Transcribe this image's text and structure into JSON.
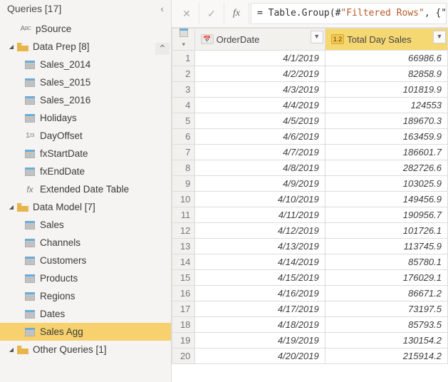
{
  "pane": {
    "title": "Queries [17]",
    "collapse_glyph": "‹"
  },
  "tree": {
    "root_item": {
      "label": "pSource",
      "icon": "abc"
    },
    "groups": [
      {
        "label": "Data Prep [8]",
        "expanded": true,
        "items": [
          {
            "label": "Sales_2014",
            "icon": "table"
          },
          {
            "label": "Sales_2015",
            "icon": "table"
          },
          {
            "label": "Sales_2016",
            "icon": "table"
          },
          {
            "label": "Holidays",
            "icon": "table"
          },
          {
            "label": "DayOffset",
            "icon": "num"
          },
          {
            "label": "fxStartDate",
            "icon": "table"
          },
          {
            "label": "fxEndDate",
            "icon": "table"
          },
          {
            "label": "Extended Date Table",
            "icon": "fx"
          }
        ]
      },
      {
        "label": "Data Model [7]",
        "expanded": true,
        "items": [
          {
            "label": "Sales",
            "icon": "table"
          },
          {
            "label": "Channels",
            "icon": "table"
          },
          {
            "label": "Customers",
            "icon": "table"
          },
          {
            "label": "Products",
            "icon": "table"
          },
          {
            "label": "Regions",
            "icon": "table"
          },
          {
            "label": "Dates",
            "icon": "table"
          },
          {
            "label": "Sales Agg",
            "icon": "table",
            "selected": true
          }
        ]
      },
      {
        "label": "Other Queries [1]",
        "expanded": true,
        "items": []
      }
    ]
  },
  "formula": {
    "prefix": "= Table.Group(#",
    "string": "\"Filtered Rows\"",
    "suffix": ", {\"O"
  },
  "grid": {
    "columns": [
      {
        "name": "OrderDate",
        "type_badge": "📅",
        "highlight": false,
        "width": 180
      },
      {
        "name": "Total Day Sales",
        "type_badge": "1.2",
        "highlight": true,
        "width": 170
      }
    ],
    "rows": [
      {
        "n": 1,
        "date": "4/1/2019",
        "val": "66986.6"
      },
      {
        "n": 2,
        "date": "4/2/2019",
        "val": "82858.9"
      },
      {
        "n": 3,
        "date": "4/3/2019",
        "val": "101819.9"
      },
      {
        "n": 4,
        "date": "4/4/2019",
        "val": "124553"
      },
      {
        "n": 5,
        "date": "4/5/2019",
        "val": "189670.3"
      },
      {
        "n": 6,
        "date": "4/6/2019",
        "val": "163459.9"
      },
      {
        "n": 7,
        "date": "4/7/2019",
        "val": "186601.7"
      },
      {
        "n": 8,
        "date": "4/8/2019",
        "val": "282726.6"
      },
      {
        "n": 9,
        "date": "4/9/2019",
        "val": "103025.9"
      },
      {
        "n": 10,
        "date": "4/10/2019",
        "val": "149456.9"
      },
      {
        "n": 11,
        "date": "4/11/2019",
        "val": "190956.7"
      },
      {
        "n": 12,
        "date": "4/12/2019",
        "val": "101726.1"
      },
      {
        "n": 13,
        "date": "4/13/2019",
        "val": "113745.9"
      },
      {
        "n": 14,
        "date": "4/14/2019",
        "val": "85780.1"
      },
      {
        "n": 15,
        "date": "4/15/2019",
        "val": "176029.1"
      },
      {
        "n": 16,
        "date": "4/16/2019",
        "val": "86671.2"
      },
      {
        "n": 17,
        "date": "4/17/2019",
        "val": "73197.5"
      },
      {
        "n": 18,
        "date": "4/18/2019",
        "val": "85793.5"
      },
      {
        "n": 19,
        "date": "4/19/2019",
        "val": "130154.2"
      },
      {
        "n": 20,
        "date": "4/20/2019",
        "val": "215914.2"
      }
    ]
  },
  "colors": {
    "selection": "#f6d16d",
    "header_highlight": "#f6d873",
    "folder": "#e8b54a"
  }
}
